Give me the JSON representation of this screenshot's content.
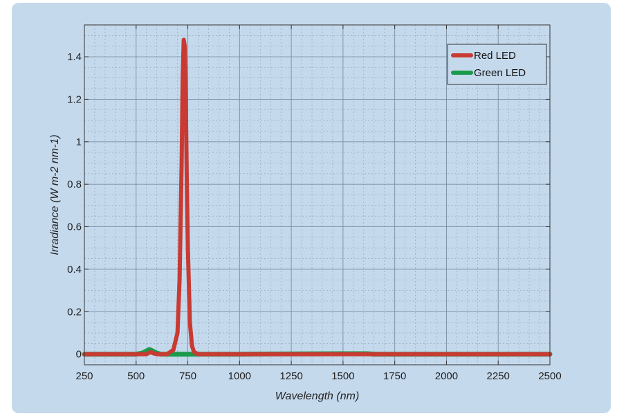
{
  "chart_data": {
    "type": "line",
    "xlabel": "Wavelength (nm)",
    "ylabel": "Irradiance (W m-2 nm-1)",
    "xlim": [
      250,
      2500
    ],
    "ylim": [
      -0.05,
      1.55
    ],
    "x_ticks": [
      250,
      500,
      750,
      1000,
      1250,
      1500,
      1750,
      2000,
      2250,
      2500
    ],
    "x_tick_labels": [
      "250",
      "500",
      "750",
      "1000",
      "1250",
      "1500",
      "1750",
      "2000",
      "2250",
      "2500"
    ],
    "y_ticks": [
      0,
      0.2,
      0.4,
      0.6,
      0.8,
      1,
      1.2,
      1.4
    ],
    "y_tick_labels": [
      "0",
      "0.2",
      "0.4",
      "0.6",
      "0.8",
      "1",
      "1.2",
      "1.4"
    ],
    "grid": true,
    "legend_position": "top-right",
    "series": [
      {
        "name": "Red LED",
        "color": "#c83a32",
        "x": [
          250,
          550,
          560,
          570,
          580,
          600,
          650,
          680,
          700,
          710,
          720,
          725,
          730,
          735,
          740,
          745,
          750,
          760,
          770,
          780,
          800,
          900,
          1000,
          1500,
          2000,
          2500
        ],
        "y": [
          0,
          0,
          0.005,
          0.01,
          0.005,
          0,
          0,
          0.02,
          0.1,
          0.35,
          0.9,
          1.3,
          1.48,
          1.45,
          1.2,
          0.8,
          0.5,
          0.15,
          0.04,
          0.01,
          0,
          0,
          0,
          0,
          0,
          0
        ]
      },
      {
        "name": "Green LED",
        "color": "#1a9a4a",
        "x": [
          250,
          500,
          530,
          550,
          565,
          580,
          600,
          620,
          650,
          700,
          1000,
          1500,
          1620,
          1650,
          2000,
          2500
        ],
        "y": [
          0,
          0,
          0.005,
          0.015,
          0.022,
          0.015,
          0.005,
          0,
          0,
          0,
          0,
          0.002,
          0.002,
          0,
          0,
          0
        ]
      }
    ]
  }
}
